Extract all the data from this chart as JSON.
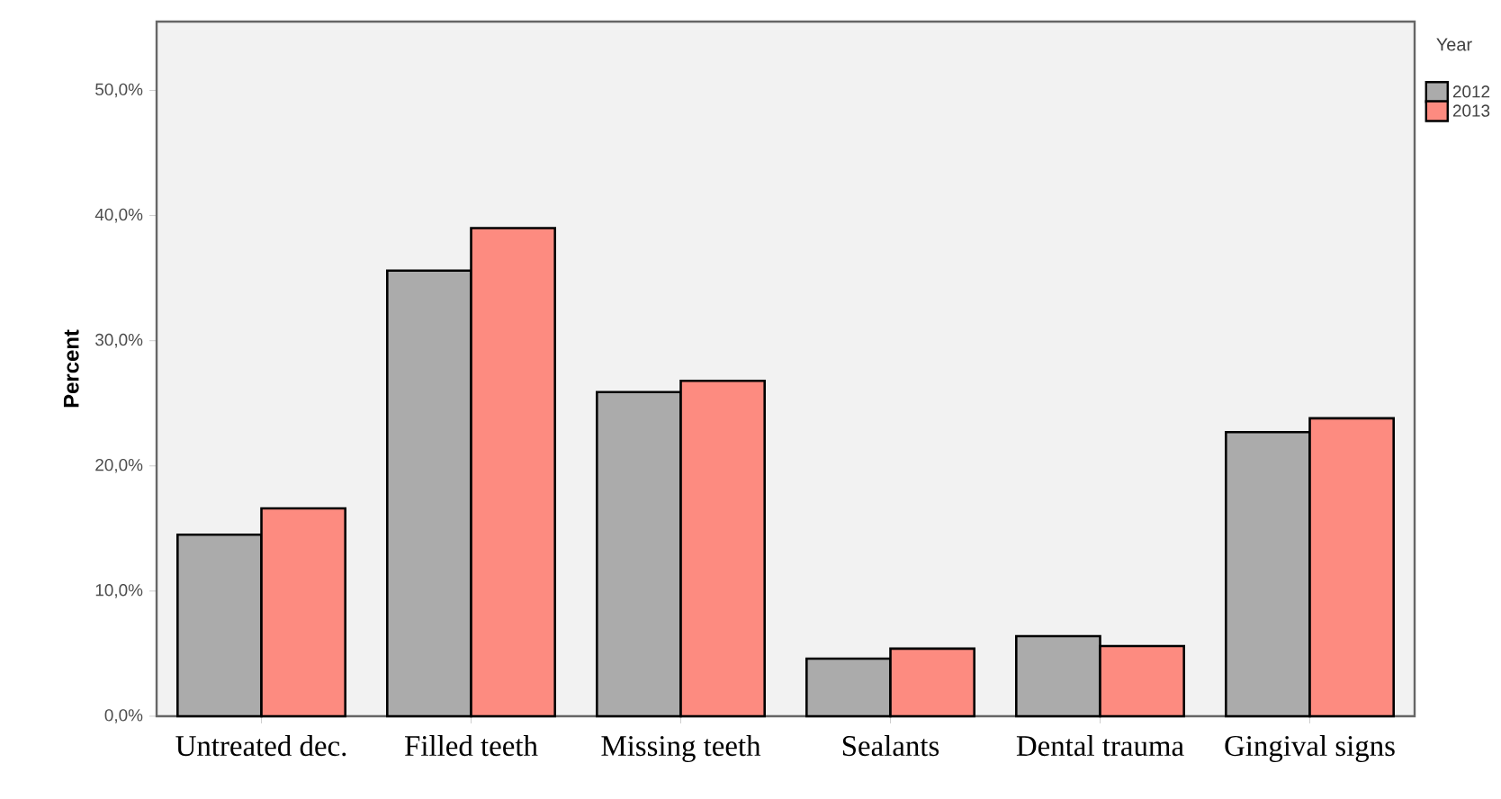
{
  "chart_data": {
    "type": "bar",
    "ylabel": "Percent",
    "legend_title": "Year",
    "legend": "top right",
    "categories": [
      "Untreated dec.",
      "Filled teeth",
      "Missing teeth",
      "Sealants",
      "Dental trauma",
      "Gingival signs"
    ],
    "series": [
      {
        "name": "2012",
        "color": "#ababab",
        "values": [
          14.5,
          35.6,
          25.9,
          4.6,
          6.4,
          22.7
        ]
      },
      {
        "name": "2013",
        "color": "#fd8b80",
        "values": [
          16.6,
          39.0,
          26.8,
          5.4,
          5.6,
          23.8
        ]
      }
    ],
    "ylim": [
      0,
      55.5
    ],
    "yticks": [
      {
        "value": 0,
        "label": "0,0%"
      },
      {
        "value": 10,
        "label": "10,0%"
      },
      {
        "value": 20,
        "label": "20,0%"
      },
      {
        "value": 30,
        "label": "30,0%"
      },
      {
        "value": 40,
        "label": "40,0%"
      },
      {
        "value": 50,
        "label": "50,0%"
      }
    ],
    "grid": false
  }
}
